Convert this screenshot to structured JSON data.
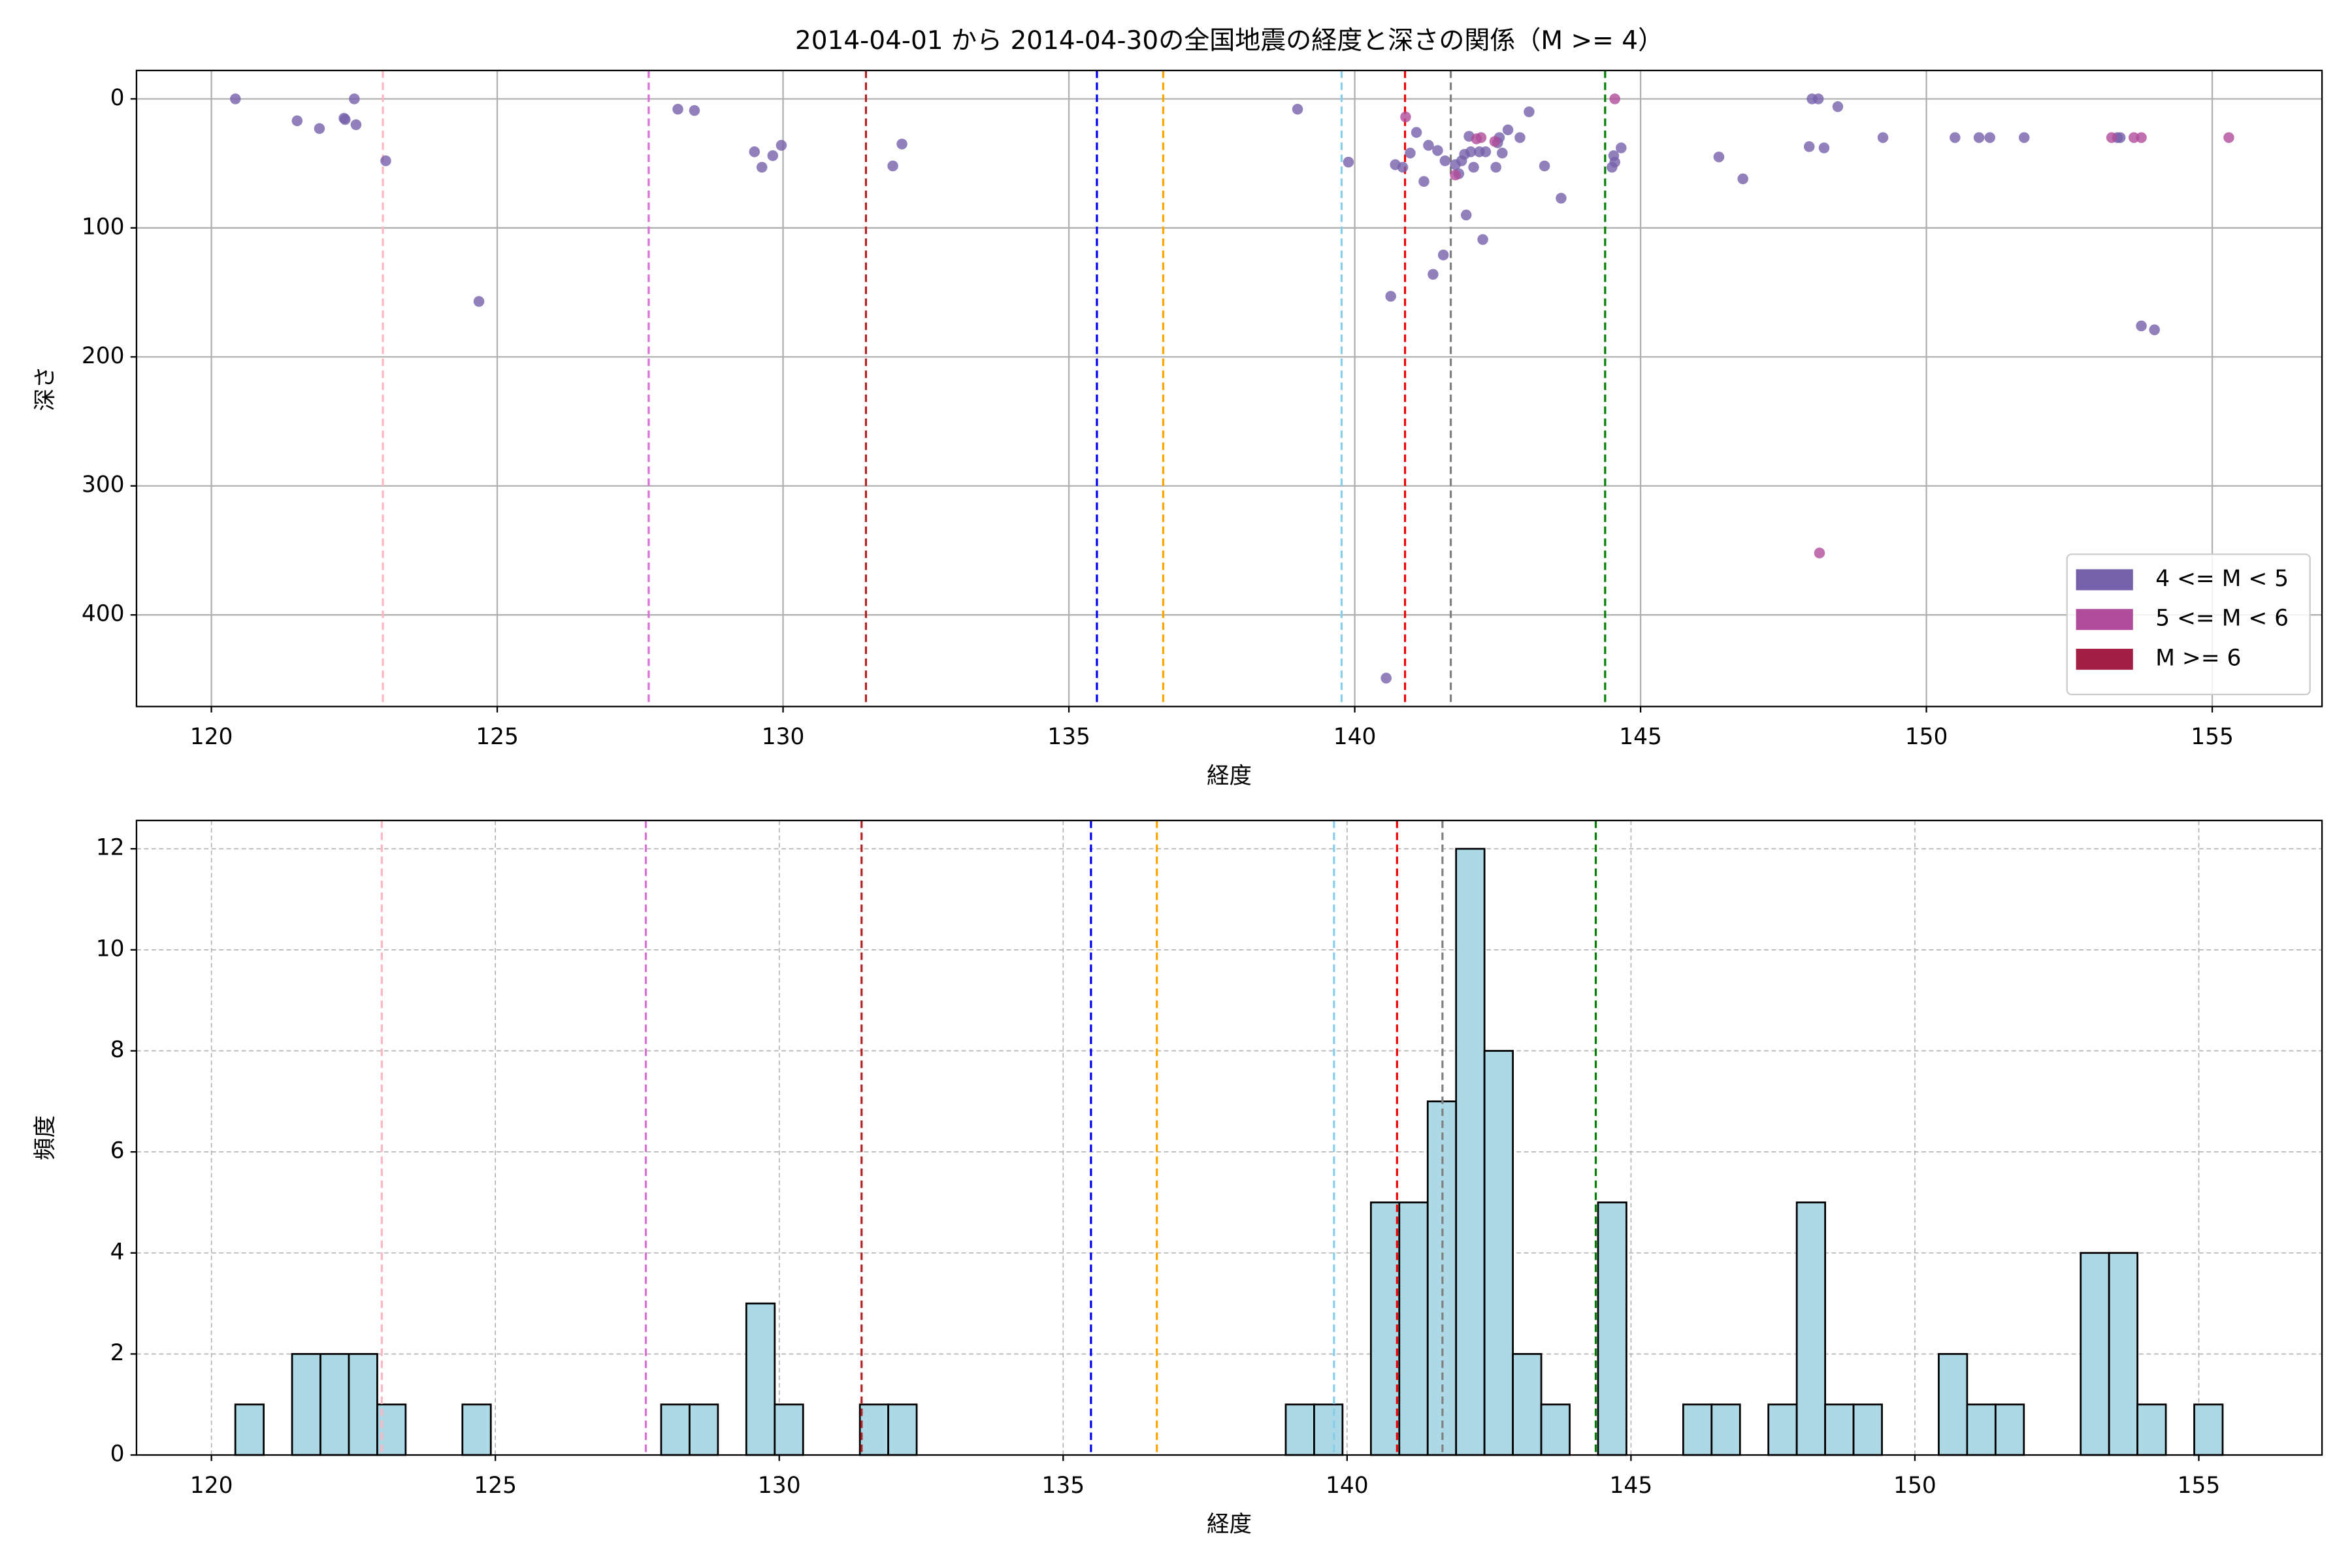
{
  "chart_data": [
    {
      "type": "scatter",
      "title": "2014-04-01 から 2014-04-30の全国地震の経度と深さの関係（M >= 4）",
      "xlabel": "経度",
      "ylabel": "深さ",
      "xlim": [
        118.69,
        156.92
      ],
      "ylim": [
        471,
        -22
      ],
      "xticks": [
        120,
        125,
        130,
        135,
        140,
        145,
        150,
        155
      ],
      "yticks": [
        0,
        100,
        200,
        300,
        400
      ],
      "grid": true,
      "grid_style": "solid",
      "legend": "lower right",
      "reference_lines": [
        {
          "x": 123.0,
          "color": "#ffb6c1"
        },
        {
          "x": 127.65,
          "color": "#da70d6"
        },
        {
          "x": 131.45,
          "color": "#b22222"
        },
        {
          "x": 135.49,
          "color": "#0000ee"
        },
        {
          "x": 136.65,
          "color": "#ffa500"
        },
        {
          "x": 139.77,
          "color": "#87ceeb"
        },
        {
          "x": 140.88,
          "color": "#ee0000"
        },
        {
          "x": 141.68,
          "color": "#808080"
        },
        {
          "x": 144.38,
          "color": "#008000"
        }
      ],
      "series": [
        {
          "name": "4 <= M < 5",
          "color": "#7560aa",
          "x": [
            120.42,
            121.5,
            121.89,
            122.32,
            122.34,
            122.5,
            122.53,
            123.05,
            124.68,
            128.16,
            128.45,
            129.5,
            129.63,
            129.82,
            129.97,
            131.92,
            132.08,
            139.0,
            139.89,
            140.63,
            140.71,
            140.84,
            140.97,
            141.08,
            141.21,
            141.29,
            141.37,
            141.45,
            141.55,
            141.58,
            141.76,
            141.82,
            141.87,
            141.92,
            141.95,
            142.0,
            142.03,
            142.08,
            142.18,
            142.24,
            142.29,
            142.5,
            142.47,
            142.53,
            142.58,
            142.68,
            142.89,
            143.05,
            143.32,
            143.61,
            144.5,
            144.53,
            144.55,
            144.66,
            140.55,
            146.37,
            146.79,
            147.95,
            148.0,
            148.11,
            148.21,
            148.45,
            149.24,
            150.5,
            150.92,
            151.11,
            151.71,
            153.34,
            153.39,
            153.76,
            153.99
          ],
          "values": [
            0,
            17,
            23,
            15,
            16,
            0,
            20,
            48,
            157,
            8,
            9,
            41,
            53,
            44,
            36,
            52,
            35,
            8,
            49,
            153,
            51,
            53,
            42,
            26,
            64,
            36,
            136,
            40,
            121,
            48,
            51,
            58,
            48,
            43,
            90,
            29,
            41,
            53,
            41,
            109,
            41,
            34,
            53,
            30,
            42,
            24,
            30,
            10,
            52,
            77,
            53,
            44,
            49,
            38,
            449,
            45,
            62,
            37,
            0,
            0,
            38,
            6,
            30,
            30,
            30,
            30,
            30,
            30,
            30,
            176,
            179
          ]
        },
        {
          "name": "5 <= M < 6",
          "color": "#b04c9a",
          "x": [
            140.89,
            141.76,
            142.13,
            142.21,
            142.45,
            144.55,
            148.13,
            153.24,
            153.63,
            153.76,
            155.29
          ],
          "values": [
            14,
            59,
            31,
            30,
            33,
            0,
            352,
            30,
            30,
            30,
            30
          ]
        },
        {
          "name": "M >= 6",
          "color": "#a31f44",
          "x": [],
          "values": []
        }
      ]
    },
    {
      "type": "histogram",
      "xlabel": "経度",
      "ylabel": "頻度",
      "xlim": [
        118.68,
        157.17
      ],
      "ylim": [
        0,
        12.56
      ],
      "xticks": [
        120,
        125,
        130,
        135,
        140,
        145,
        150,
        155
      ],
      "yticks": [
        0,
        2,
        4,
        6,
        8,
        10,
        12
      ],
      "grid": true,
      "grid_style": "dashed",
      "color": "#add8e6",
      "edgecolor": "#000000",
      "reference_lines": [
        {
          "x": 123.0,
          "color": "#ffb6c1"
        },
        {
          "x": 127.65,
          "color": "#da70d6"
        },
        {
          "x": 131.45,
          "color": "#b22222"
        },
        {
          "x": 135.49,
          "color": "#0000ee"
        },
        {
          "x": 136.65,
          "color": "#ffa500"
        },
        {
          "x": 139.77,
          "color": "#87ceeb"
        },
        {
          "x": 140.88,
          "color": "#ee0000"
        },
        {
          "x": 141.68,
          "color": "#808080"
        },
        {
          "x": 144.38,
          "color": "#008000"
        }
      ],
      "bins": [
        120.42,
        120.92,
        121.42,
        121.92,
        122.42,
        122.92,
        123.42,
        123.92,
        124.42,
        124.92,
        125.42,
        125.92,
        126.42,
        126.92,
        127.42,
        127.92,
        128.42,
        128.92,
        129.42,
        129.92,
        130.42,
        130.92,
        131.42,
        131.92,
        132.42,
        132.92,
        133.42,
        133.92,
        134.42,
        134.92,
        135.42,
        135.92,
        136.42,
        136.92,
        137.42,
        137.92,
        138.42,
        138.92,
        139.42,
        139.92,
        140.42,
        140.92,
        141.42,
        141.92,
        142.42,
        142.92,
        143.42,
        143.92,
        144.42,
        144.92,
        145.42,
        145.92,
        146.42,
        146.92,
        147.42,
        147.92,
        148.42,
        148.92,
        149.42,
        149.92,
        150.42,
        150.92,
        151.42,
        151.92,
        152.42,
        152.92,
        153.42,
        153.92,
        154.42,
        154.92,
        155.42
      ],
      "values": [
        1,
        0,
        2,
        2,
        2,
        1,
        0,
        0,
        1,
        0,
        0,
        0,
        0,
        0,
        0,
        1,
        1,
        0,
        3,
        1,
        0,
        0,
        1,
        1,
        0,
        0,
        0,
        0,
        0,
        0,
        0,
        0,
        0,
        0,
        0,
        0,
        0,
        1,
        1,
        0,
        5,
        5,
        7,
        12,
        8,
        2,
        1,
        0,
        5,
        0,
        0,
        1,
        1,
        0,
        1,
        5,
        1,
        1,
        0,
        0,
        2,
        1,
        1,
        0,
        0,
        4,
        4,
        1,
        0,
        1
      ]
    }
  ]
}
